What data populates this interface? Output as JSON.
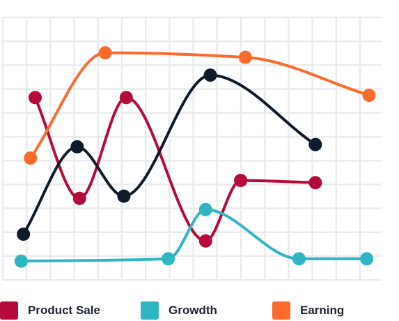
{
  "chart_data": {
    "type": "line",
    "title": "",
    "xlabel": "",
    "ylabel": "",
    "grid": true,
    "legend_position": "bottom",
    "series": [
      {
        "name": "Product Sale",
        "color": "#b50a3a",
        "points": [
          [
            0.7,
            77
          ],
          [
            2.6,
            32
          ],
          [
            4.6,
            77
          ],
          [
            8.0,
            13
          ],
          [
            9.5,
            40
          ],
          [
            12.7,
            39
          ]
        ]
      },
      {
        "name": "Growdth",
        "color": "#2fb6c2",
        "points": [
          [
            0.1,
            4
          ],
          [
            6.4,
            5
          ],
          [
            8.0,
            27
          ],
          [
            12.0,
            5
          ],
          [
            14.9,
            5
          ]
        ]
      },
      {
        "name": "Earning",
        "color": "#fb6b2c",
        "points": [
          [
            0.5,
            50
          ],
          [
            3.7,
            97
          ],
          [
            9.7,
            95
          ],
          [
            15.0,
            78
          ]
        ]
      },
      {
        "name": "",
        "color": "#0e1b2a",
        "points": [
          [
            0.2,
            16
          ],
          [
            2.5,
            55
          ],
          [
            4.5,
            33
          ],
          [
            8.2,
            87
          ],
          [
            12.7,
            56
          ]
        ]
      }
    ]
  },
  "legend": [
    {
      "label": "Product Sale",
      "color": "#b50a3a"
    },
    {
      "label": "Growdth",
      "color": "#2fb6c2"
    },
    {
      "label": "Earning",
      "color": "#fb6b2c"
    }
  ]
}
